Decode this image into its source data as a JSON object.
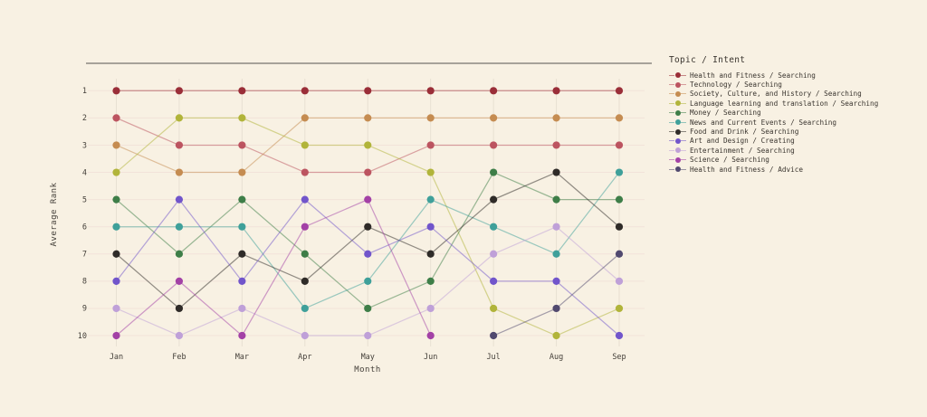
{
  "page": {
    "background": "#F8F1E3"
  },
  "chart_data": {
    "type": "line",
    "subtype": "bump-chart",
    "title": "",
    "xlabel": "Month",
    "ylabel": "Average Rank",
    "legend_title": "Topic / Intent",
    "legend_position": "right",
    "grid": true,
    "y_inverted": true,
    "ylim": [
      1,
      10
    ],
    "yticks": [
      1,
      2,
      3,
      4,
      5,
      6,
      7,
      8,
      9,
      10
    ],
    "categories": [
      "Jan",
      "Feb",
      "Mar",
      "Apr",
      "May",
      "Jun",
      "Jul",
      "Aug",
      "Sep"
    ],
    "series": [
      {
        "name": "Health and Fitness / Searching",
        "color": "#9A2E38",
        "ranks": [
          1,
          1,
          1,
          1,
          1,
          1,
          1,
          1,
          1
        ]
      },
      {
        "name": "Technology / Searching",
        "color": "#BC5460",
        "ranks": [
          2,
          3,
          3,
          4,
          4,
          3,
          3,
          3,
          3
        ]
      },
      {
        "name": "Society, Culture, and History / Searching",
        "color": "#C58C51",
        "ranks": [
          3,
          4,
          4,
          2,
          2,
          2,
          2,
          2,
          2
        ]
      },
      {
        "name": "Language learning and translation / Searching",
        "color": "#B1B43A",
        "ranks": [
          4,
          2,
          2,
          3,
          3,
          4,
          9,
          10,
          9
        ]
      },
      {
        "name": "Money / Searching",
        "color": "#3E7E48",
        "ranks": [
          5,
          7,
          5,
          7,
          9,
          8,
          4,
          5,
          5
        ]
      },
      {
        "name": "News and Current Events / Searching",
        "color": "#3FA09A",
        "ranks": [
          6,
          6,
          6,
          9,
          8,
          5,
          6,
          7,
          4
        ]
      },
      {
        "name": "Food and Drink / Searching",
        "color": "#2F2B28",
        "ranks": [
          7,
          9,
          7,
          8,
          6,
          7,
          5,
          4,
          6
        ]
      },
      {
        "name": "Art and Design / Creating",
        "color": "#7155CB",
        "ranks": [
          8,
          5,
          8,
          5,
          7,
          6,
          8,
          8,
          10
        ]
      },
      {
        "name": "Entertainment / Searching",
        "color": "#BFA0D8",
        "ranks": [
          9,
          10,
          9,
          10,
          10,
          9,
          7,
          6,
          8
        ]
      },
      {
        "name": "Science / Searching",
        "color": "#A341A6",
        "ranks": [
          10,
          8,
          10,
          6,
          5,
          10,
          null,
          null,
          null
        ]
      },
      {
        "name": "Health and Fitness / Advice",
        "color": "#51496F",
        "ranks": [
          null,
          null,
          null,
          null,
          null,
          null,
          10,
          9,
          7
        ]
      }
    ],
    "colors": {
      "background": "#F8F1E3",
      "grid_vertical": "#E8E0D2",
      "grid_horizontal": "#F2E3D9",
      "top_rule": "#8C8781",
      "text": "#45403A"
    }
  }
}
